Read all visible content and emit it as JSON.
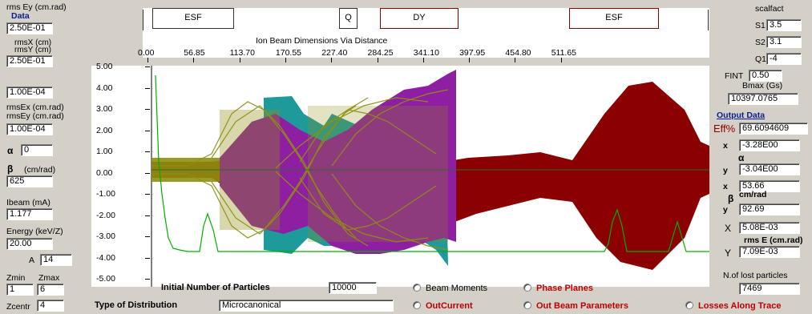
{
  "left": {
    "rms_ey_label": "rms Ey (cm.rad)",
    "data_label": "Data",
    "rms_ey_value": "2.50E-01",
    "rmsx_label": "rmsX (cm)",
    "rmsy_label": "rmsY (cm)",
    "rmsxy_value": "2.50E-01",
    "blank_value": "1.00E-04",
    "rmsex_label": "rmsEx (cm.rad)",
    "rmsey_label": "rmsEy (cm.rad)",
    "rmsexy_value": "1.00E-04",
    "alpha_label": "α",
    "alpha_value": "0",
    "beta_label": "β",
    "beta_unit": "(cm/rad)",
    "beta_value": "625",
    "ibeam_label": "Ibeam (mA)",
    "ibeam_value": "1.177",
    "energy_label": "Energy (keV/Z)",
    "energy_value": "20.00",
    "a_label": "A",
    "a_value": "14",
    "zmin_label": "Zmin",
    "zmax_label": "Zmax",
    "zmin_value": "1",
    "zmax_value": "6",
    "zcentr_label": "Zcentr",
    "zcentr_value": "4"
  },
  "top": {
    "elements": [
      {
        "label": "ESF"
      },
      {
        "label": "Q"
      },
      {
        "label": "DY"
      },
      {
        "label": "ESF"
      }
    ],
    "subtitle": "Ion Beam Dimensions  Via Distance",
    "x_ticks": [
      "0.00",
      "56.85",
      "113.70",
      "170.55",
      "227.40",
      "284.25",
      "341.10",
      "397.95",
      "454.80",
      "511.65"
    ]
  },
  "plot": {
    "y_ticks": [
      "5.00",
      "4.00",
      "3.00",
      "2.00",
      "1.00",
      "0.00",
      "-1.00",
      "-2.00",
      "-3.00",
      "-4.00",
      "-5.00"
    ],
    "colors": {
      "dark_red": "#8b0000",
      "teal": "#1f9a9a",
      "purple": "#8e1fa3",
      "olive": "#8f8f10",
      "green": "#00b000"
    }
  },
  "right": {
    "scalfact_label": "scalfact",
    "s1_label": "S1",
    "s1_value": "3.5",
    "s2_label": "S2",
    "s2_value": "3.1",
    "q1_label": "Q1",
    "q1_value": "-4",
    "fint_label": "FINT",
    "fint_value": "0.50",
    "bmax_label": "Bmax (Gs)",
    "bmax_value": "10397.0765",
    "output_label": "Output Data",
    "eff_label": "Eff%",
    "eff_value": "69.6094609",
    "x_label": "x",
    "alpha_x_value": "-3.28E00",
    "alpha_label": "α",
    "y_label": "y",
    "alpha_y_value": "-3.04E00",
    "beta_x_value": "53.66",
    "beta_label": "β",
    "beta_unit": "cm/rad",
    "beta_y_value": "92.69",
    "ex_label": "X",
    "ex_value": "5.08E-03",
    "rmse_label": "rms E (cm.rad)",
    "ey_label": "Y",
    "ey_value": "7.09E-03",
    "lost_label": "N.of lost particles",
    "lost_value": "7469"
  },
  "bottom": {
    "initial_label": "Initial Number of Particles",
    "initial_value": "10000",
    "distribution_label": "Type of Distribution",
    "distribution_value": "Microcanonical",
    "radio_beam_moments": "Beam Moments",
    "radio_phase_planes": "Phase Planes",
    "radio_outcurrent": "OutCurrent",
    "radio_out_beam_params": "Out Beam Parameters",
    "radio_losses": "Losses Along Trace"
  }
}
